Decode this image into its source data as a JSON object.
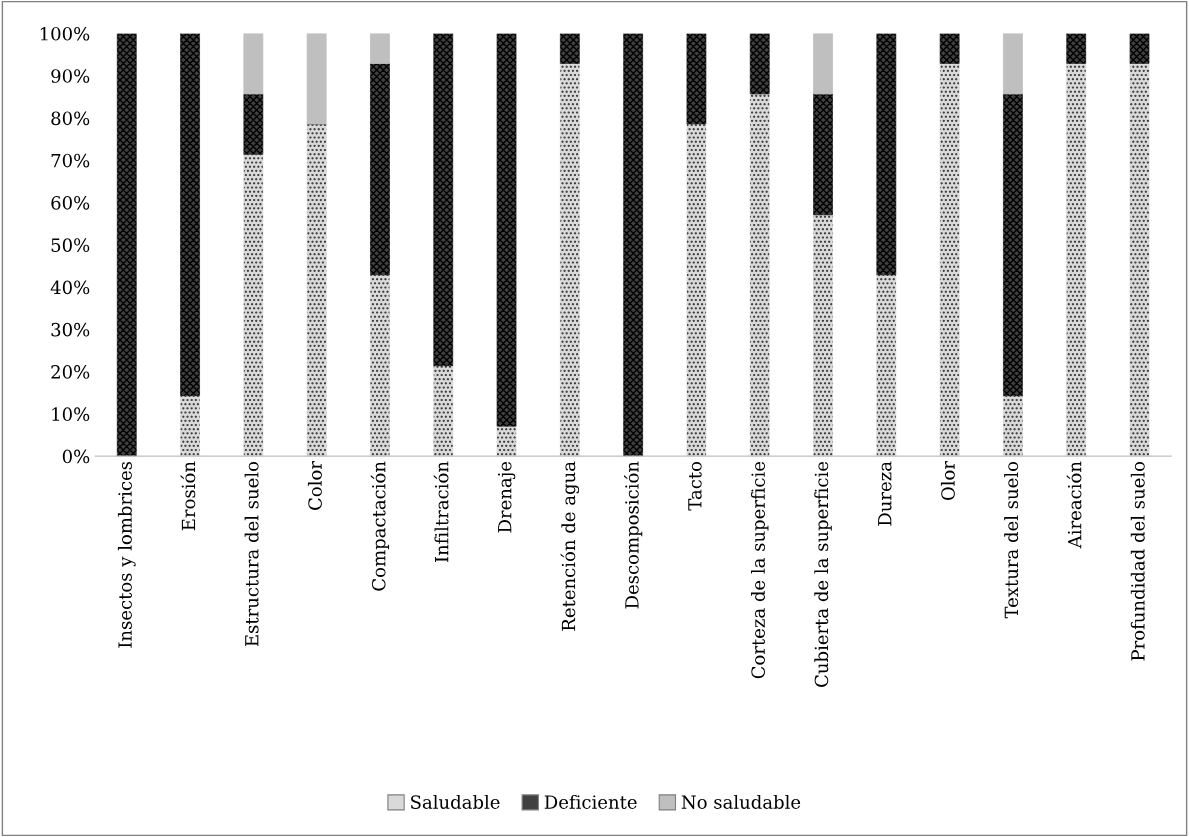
{
  "chart_data": {
    "type": "bar",
    "stacked": true,
    "categories": [
      "Insectos y lombrices",
      "Erosión",
      "Estructura del suelo",
      "Color",
      "Compactación",
      "Infiltración",
      "Drenaje",
      "Retención de agua",
      "Descomposición",
      "Tacto",
      "Corteza de la superficie",
      "Cubierta de la superficie",
      "Dureza",
      "Olor",
      "Textura del suelo",
      "Aireación",
      "Profundidad del suelo"
    ],
    "series": [
      {
        "name": "Saludable",
        "color": "#d9d9d9",
        "values": [
          0,
          14.3,
          71.4,
          78.6,
          42.9,
          21.4,
          7.1,
          92.9,
          0,
          78.6,
          85.7,
          57.1,
          42.9,
          92.9,
          14.3,
          92.9,
          92.9
        ]
      },
      {
        "name": "Deficiente",
        "color": "#404040",
        "values": [
          100,
          85.7,
          14.3,
          0,
          50,
          78.6,
          92.9,
          7.1,
          100,
          21.4,
          14.3,
          28.6,
          57.1,
          7.1,
          71.4,
          7.1,
          7.1
        ]
      },
      {
        "name": "No saludable",
        "color": "#bfbfbf",
        "values": [
          0,
          0,
          14.3,
          21.4,
          7.1,
          0,
          0,
          0,
          0,
          0,
          0,
          14.3,
          0,
          0,
          14.3,
          0,
          0
        ]
      }
    ],
    "ylim": [
      0,
      100
    ],
    "yticks": [
      {
        "value": 0,
        "label": "0%"
      },
      {
        "value": 10,
        "label": "10%"
      },
      {
        "value": 20,
        "label": "20%"
      },
      {
        "value": 30,
        "label": "30%"
      },
      {
        "value": 40,
        "label": "40%"
      },
      {
        "value": 50,
        "label": "50%"
      },
      {
        "value": 60,
        "label": "60%"
      },
      {
        "value": 70,
        "label": "70%"
      },
      {
        "value": 80,
        "label": "80%"
      },
      {
        "value": 90,
        "label": "90%"
      },
      {
        "value": 100,
        "label": "100%"
      }
    ],
    "grid": false,
    "legend": "bottom"
  }
}
